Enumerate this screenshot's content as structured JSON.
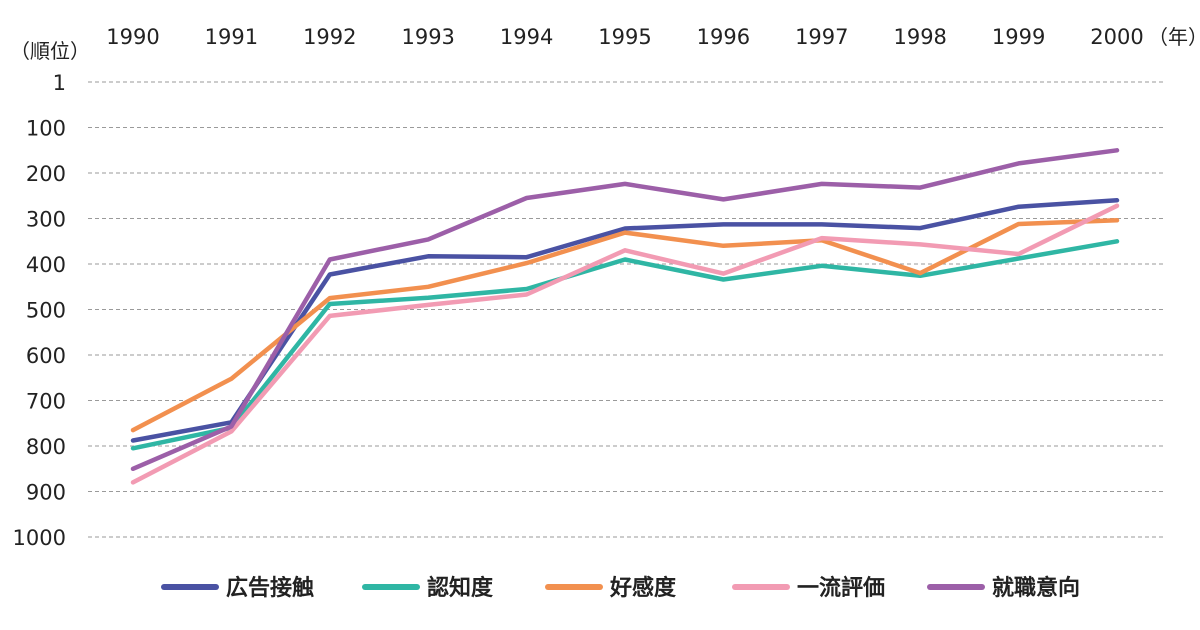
{
  "chart_data": {
    "type": "line",
    "x_unit_label": "（年）",
    "y_unit_label": "（順位）",
    "x": [
      "1990",
      "1991",
      "1992",
      "1993",
      "1994",
      "1995",
      "1996",
      "1997",
      "1998",
      "1999",
      "2000"
    ],
    "y_ticks": [
      "1",
      "100",
      "200",
      "300",
      "400",
      "500",
      "600",
      "700",
      "800",
      "900",
      "1000"
    ],
    "y_tick_values": [
      1,
      100,
      200,
      300,
      400,
      500,
      600,
      700,
      800,
      900,
      1000
    ],
    "ylim": [
      1,
      1000
    ],
    "y_inverted": true,
    "grid": true,
    "legend_position": "bottom",
    "series": [
      {
        "name": "広告接触",
        "color": "#4a52a3",
        "values": [
          788,
          748,
          423,
          383,
          385,
          322,
          313,
          313,
          321,
          274,
          260
        ]
      },
      {
        "name": "認知度",
        "color": "#2fb6a4",
        "values": [
          805,
          760,
          488,
          474,
          455,
          390,
          434,
          404,
          426,
          388,
          350
        ]
      },
      {
        "name": "好感度",
        "color": "#f2904f",
        "values": [
          765,
          652,
          475,
          450,
          398,
          331,
          360,
          348,
          420,
          312,
          304
        ]
      },
      {
        "name": "一流評価",
        "color": "#f29bb3",
        "values": [
          880,
          768,
          514,
          490,
          467,
          370,
          421,
          343,
          357,
          378,
          272
        ]
      },
      {
        "name": "就職意向",
        "color": "#9c5fa8",
        "values": [
          850,
          757,
          390,
          346,
          255,
          224,
          258,
          224,
          232,
          179,
          150
        ]
      }
    ]
  }
}
